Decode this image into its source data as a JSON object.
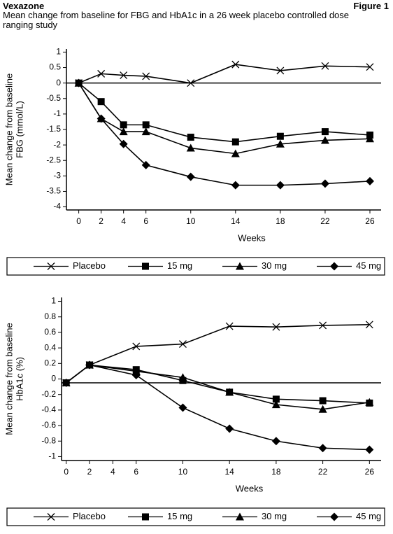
{
  "header": {
    "left": "Vexazone",
    "right": "Figure 1",
    "title": "Mean change from baseline for FBG and HbA1c in a 26 week placebo controlled dose ranging study"
  },
  "chart_data": [
    {
      "type": "line",
      "xlabel": "Weeks",
      "ylabel": [
        "Mean change from baseline",
        "FBG (mmol/L)"
      ],
      "x": [
        0,
        2,
        4,
        6,
        10,
        14,
        18,
        22,
        26
      ],
      "xlim": [
        -1.1,
        27
      ],
      "xticks": [
        0,
        2,
        4,
        6,
        10,
        14,
        18,
        22,
        26
      ],
      "ylim": [
        -4.1,
        1.1
      ],
      "yticks": [
        1,
        0.5,
        0,
        -0.5,
        -1,
        -1.5,
        -2,
        -2.5,
        -3,
        -3.5,
        -4
      ],
      "reference_line": 0,
      "series": [
        {
          "name": "Placebo",
          "color": "#000000",
          "marker": "x",
          "values": [
            0,
            0.3,
            0.25,
            0.22,
            0,
            0.6,
            0.4,
            0.55,
            0.52
          ]
        },
        {
          "name": "15 mg",
          "color": "#000000",
          "marker": "square",
          "values": [
            0,
            -0.6,
            -1.35,
            -1.35,
            -1.75,
            -1.9,
            -1.72,
            -1.57,
            -1.68
          ]
        },
        {
          "name": "30 mg",
          "color": "#000000",
          "marker": "triangle",
          "values": [
            0,
            -1.15,
            -1.57,
            -1.57,
            -2.1,
            -2.28,
            -1.97,
            -1.85,
            -1.8
          ]
        },
        {
          "name": "45 mg",
          "color": "#000000",
          "marker": "diamond",
          "values": [
            0,
            -1.15,
            -1.97,
            -2.65,
            -3.03,
            -3.3,
            -3.3,
            -3.25,
            -3.17
          ]
        }
      ]
    },
    {
      "type": "line",
      "xlabel": "Weeks",
      "ylabel": [
        "Mean change from baseline",
        "HbA1c (%)"
      ],
      "x": [
        0,
        2,
        6,
        10,
        14,
        18,
        22,
        26
      ],
      "xlim": [
        -0.4,
        27
      ],
      "xticks": [
        0,
        2,
        4,
        6,
        10,
        14,
        18,
        22,
        26
      ],
      "ylim": [
        -1.05,
        1.05
      ],
      "yticks": [
        1,
        0.8,
        0.6,
        0.4,
        0.2,
        0,
        -0.2,
        -0.4,
        -0.6,
        -0.8,
        -1
      ],
      "reference_line": -0.05,
      "series": [
        {
          "name": "Placebo",
          "color": "#000000",
          "marker": "x",
          "values": [
            -0.05,
            0.18,
            0.42,
            0.45,
            0.68,
            0.67,
            0.69,
            0.7
          ]
        },
        {
          "name": "15 mg",
          "color": "#000000",
          "marker": "square",
          "values": [
            -0.05,
            0.18,
            0.12,
            -0.02,
            -0.17,
            -0.26,
            -0.28,
            -0.31
          ]
        },
        {
          "name": "30 mg",
          "color": "#000000",
          "marker": "triangle",
          "values": [
            -0.05,
            0.18,
            0.1,
            0.02,
            -0.17,
            -0.33,
            -0.39,
            -0.3
          ]
        },
        {
          "name": "45 mg",
          "color": "#000000",
          "marker": "diamond",
          "values": [
            -0.05,
            0.18,
            0.05,
            -0.37,
            -0.64,
            -0.8,
            -0.89,
            -0.91
          ]
        }
      ]
    }
  ]
}
